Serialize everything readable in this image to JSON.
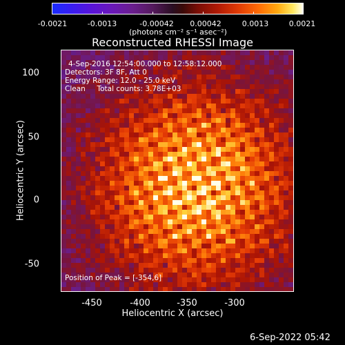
{
  "colorbar": {
    "ticks": [
      "-0.0021",
      "-0.0013",
      "-0.00042",
      "0.00042",
      "0.0013",
      "0.0021"
    ],
    "units": "(photons cm⁻² s⁻¹ asec⁻²)"
  },
  "title": "Reconstructed RHESSI Image",
  "annotations": {
    "time_range": "4-Sep-2016 12:54:00.000 to 12:58:12.000",
    "detectors": "Detectors: 3F 8F, Att 0",
    "energy_range": "Energy Range: 12.0 - 25.0 keV",
    "method": "Clean     Total counts: 3.78E+03",
    "peak": "Position of Peak = [-354,6]"
  },
  "x_axis": {
    "label": "Heliocentric X (arcsec)",
    "ticks": [
      "-450",
      "-400",
      "-350",
      "-300"
    ]
  },
  "y_axis": {
    "label": "Heliocentric Y (arcsec)",
    "ticks": [
      "100",
      "50",
      "0",
      "-50"
    ]
  },
  "footer": {
    "date": "6-Sep-2022 05:42"
  },
  "colors": {
    "background": "#000000",
    "text": "#ffffff"
  },
  "image_map": {
    "colormap": "RHESSI red-temperature",
    "peak_xy_arcsec": [
      -354,
      6
    ]
  }
}
